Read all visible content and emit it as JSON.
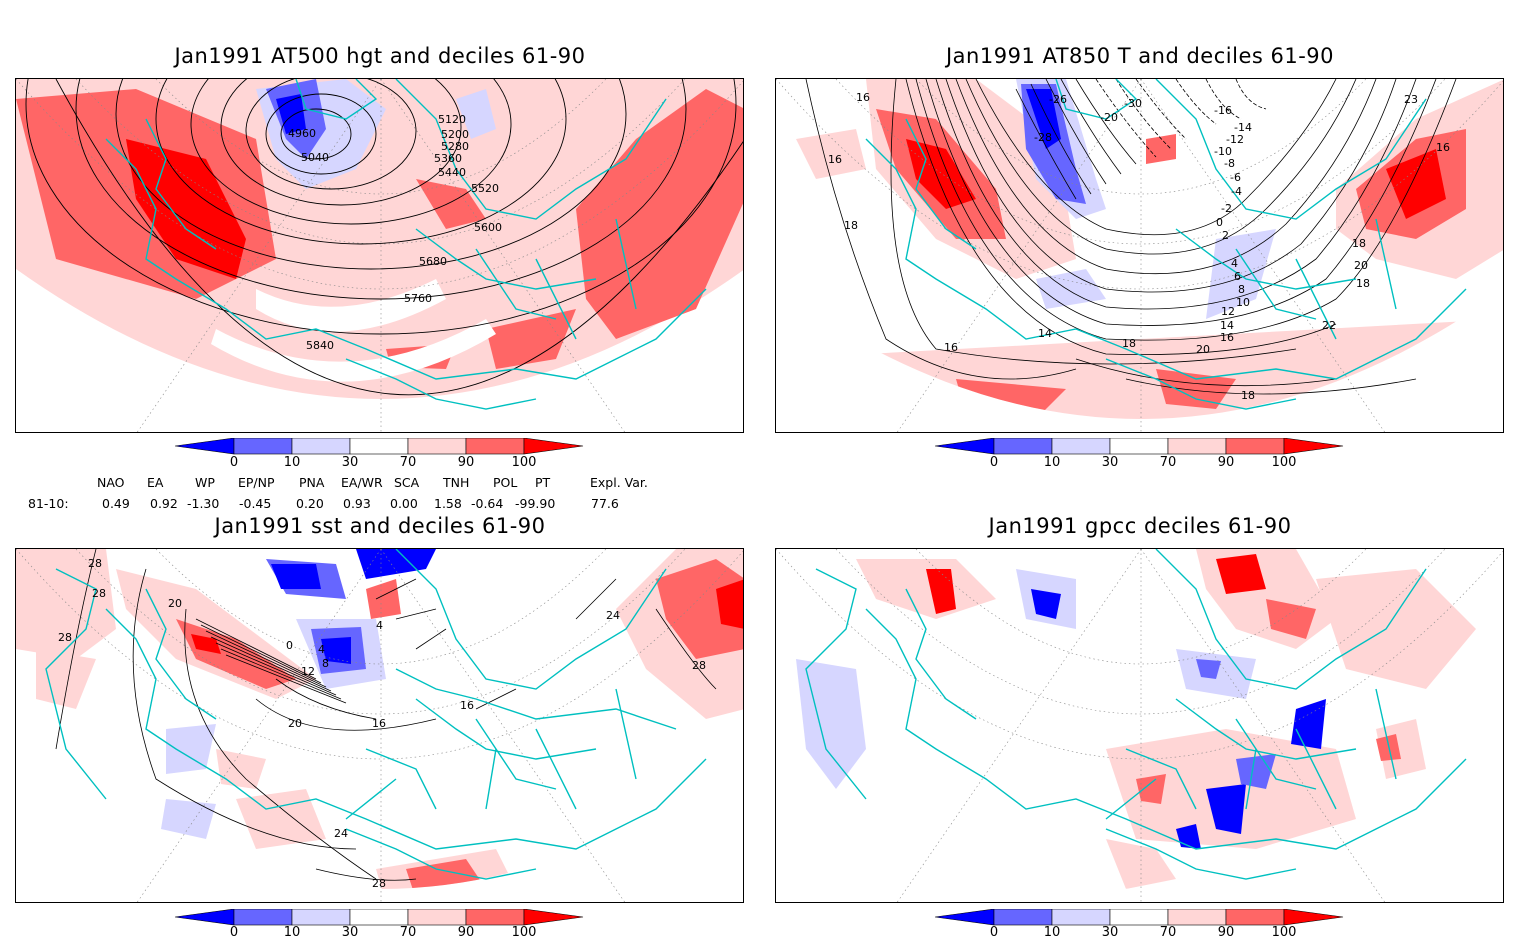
{
  "panels": {
    "p1": {
      "title": "Jan1991 AT500 hgt and deciles 61-90",
      "contour_labels": [
        "4960",
        "5040",
        "5120",
        "5200",
        "5280",
        "5360",
        "5440",
        "5520",
        "5600",
        "5680",
        "5760",
        "5840"
      ]
    },
    "p2": {
      "title": "Jan1991 AT850 T and deciles 61-90",
      "contour_labels": [
        "16",
        "16",
        "18",
        "-26",
        "-30",
        "-16",
        "-20",
        "-28",
        "-14",
        "-12",
        "-10",
        "-8",
        "-6",
        "-4",
        "-2",
        "0",
        "2",
        "4",
        "6",
        "8",
        "10",
        "12",
        "14",
        "16",
        "18",
        "20",
        "22",
        "18",
        "16",
        "14",
        "16",
        "18",
        "20",
        "18",
        "23"
      ]
    },
    "p3": {
      "title": "Jan1991 sst and deciles 61-90",
      "contour_labels": [
        "28",
        "28",
        "28",
        "20",
        "0",
        "4",
        "8",
        "12",
        "16",
        "20",
        "24",
        "28",
        "4",
        "16",
        "24",
        "28"
      ]
    },
    "p4": {
      "title": "Jan1991 gpcc deciles 61-90"
    }
  },
  "colorbar": {
    "ticks": [
      "0",
      "10",
      "30",
      "70",
      "90",
      "100"
    ],
    "colors": [
      "#0000ff",
      "#6666ff",
      "#d6d6ff",
      "#ffffff",
      "#ffd6d6",
      "#ff6666",
      "#ff0000"
    ]
  },
  "indices": {
    "headers": [
      "NAO",
      "EA",
      "WP",
      "EP/NP",
      "PNA",
      "EA/WR",
      "SCA",
      "TNH",
      "POL",
      "PT",
      "Expl. Var."
    ],
    "row_label": "81-10:",
    "values": [
      "0.49",
      "0.92",
      "-1.30",
      "-0.45",
      "0.20",
      "0.93",
      "0.00",
      "1.58",
      "-0.64",
      "-99.90",
      "77.6"
    ]
  },
  "colors": {
    "coast": "#00c0c0",
    "grid": "#888888",
    "contour": "#000000"
  }
}
